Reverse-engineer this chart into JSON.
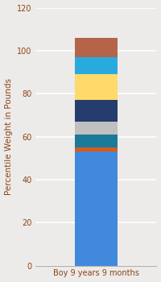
{
  "category": "Boy 9 years 9 months",
  "segments": [
    {
      "value": 53,
      "color": "#4189DC"
    },
    {
      "value": 2,
      "color": "#D95B1A"
    },
    {
      "value": 6,
      "color": "#1A7A9A"
    },
    {
      "value": 6,
      "color": "#C0C0C0"
    },
    {
      "value": 10,
      "color": "#253D6E"
    },
    {
      "value": 12,
      "color": "#FDDA6A"
    },
    {
      "value": 8,
      "color": "#29AADF"
    },
    {
      "value": 9,
      "color": "#B5644A"
    }
  ],
  "ylabel": "Percentile Weight in Pounds",
  "ylim": [
    0,
    120
  ],
  "yticks": [
    0,
    20,
    40,
    60,
    80,
    100,
    120
  ],
  "bar_width": 0.35,
  "ylabel_fontsize": 7.5,
  "tick_fontsize": 7,
  "xlabel_color": "#8B4513",
  "ylabel_color": "#8B4513",
  "tick_color": "#8B4513",
  "grid_color": "#FFFFFF",
  "axes_bg": "#EDEAEA",
  "fig_bg": "#EDEAEA"
}
